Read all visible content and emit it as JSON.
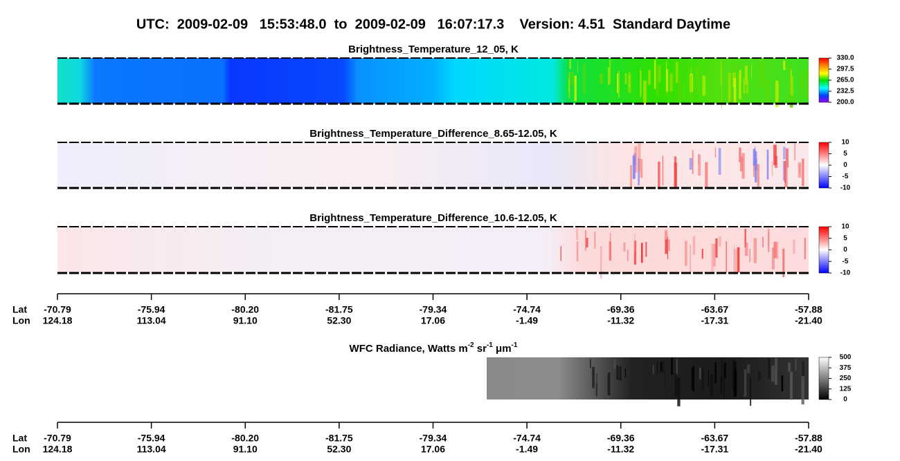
{
  "title": "UTC:  2009-02-09   15:53:48.0  to  2009-02-09   16:07:17.3    Version: 4.51  Standard Daytime",
  "panels": [
    {
      "title": "Brightness_Temperature_12_05, K",
      "colorbar_labels": [
        "330.0",
        "297.5",
        "265.0",
        "232.5",
        "200.0"
      ]
    },
    {
      "title": "Brightness_Temperature_Difference_8.65-12.05, K",
      "colorbar_labels": [
        "10",
        "5",
        "0",
        "-5",
        "-10"
      ]
    },
    {
      "title": "Brightness_Temperature_Difference_10.6-12.05, K",
      "colorbar_labels": [
        "10",
        "5",
        "0",
        "-5",
        "-10"
      ]
    },
    {
      "title_parts": [
        "WFC Radiance, Watts m",
        "-2",
        " sr",
        "-1",
        " μm",
        "-1"
      ],
      "colorbar_labels": [
        "500",
        "375",
        "250",
        "125",
        "0"
      ]
    }
  ],
  "axes": [
    {
      "lat_label": "Lat",
      "lon_label": "Lon",
      "lat": [
        "-70.79",
        "-75.94",
        "-80.20",
        "-81.75",
        "-79.34",
        "-74.74",
        "-69.36",
        "-63.67",
        "-57.88"
      ],
      "lon": [
        "124.18",
        "113.04",
        "91.10",
        "52.30",
        "17.06",
        "-1.49",
        "-11.32",
        "-17.31",
        "-21.40"
      ]
    },
    {
      "lat_label": "Lat",
      "lon_label": "Lon",
      "lat": [
        "-70.79",
        "-75.94",
        "-80.20",
        "-81.75",
        "-79.34",
        "-74.74",
        "-69.36",
        "-63.67",
        "-57.88"
      ],
      "lon": [
        "124.18",
        "113.04",
        "91.10",
        "52.30",
        "17.06",
        "-1.49",
        "-11.32",
        "-17.31",
        "-21.40"
      ]
    }
  ]
}
